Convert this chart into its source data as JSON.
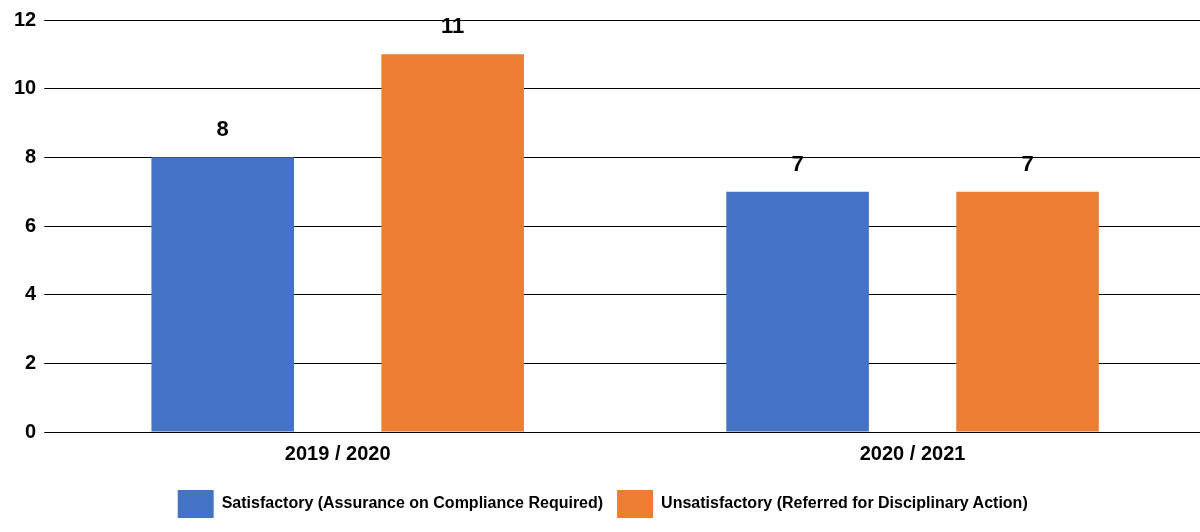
{
  "chart_data": {
    "type": "bar",
    "categories": [
      "2019 / 2020",
      "2020 / 2021"
    ],
    "series": [
      {
        "name": "Satisfactory (Assurance on Compliance Required)",
        "color": "#4472c4",
        "values": [
          8,
          7
        ]
      },
      {
        "name": "Unsatisfactory (Referred for Disciplinary Action)",
        "color": "#ed7d31",
        "values": [
          11,
          7
        ]
      }
    ],
    "ylim": [
      0,
      12
    ],
    "yticks": [
      0,
      2,
      4,
      6,
      8,
      10,
      12
    ],
    "grid": "y",
    "legend": "bottom",
    "data_labels": true
  }
}
